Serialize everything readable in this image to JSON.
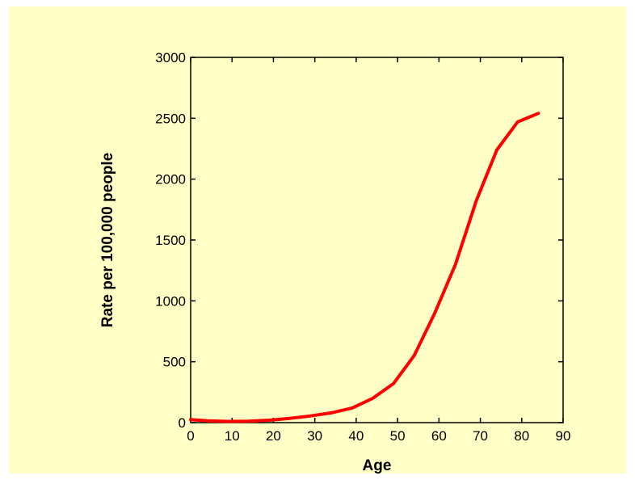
{
  "chart_data": {
    "type": "line",
    "xlabel": "Age",
    "ylabel": "Rate per 100,000 people",
    "xlim": [
      0,
      90
    ],
    "ylim": [
      0,
      3000
    ],
    "xticks": [
      0,
      10,
      20,
      30,
      40,
      50,
      60,
      70,
      80,
      90
    ],
    "yticks": [
      0,
      500,
      1000,
      1500,
      2000,
      2500,
      3000
    ],
    "grid": false,
    "legend": "none",
    "series": [
      {
        "color": "#ff0000",
        "x": [
          0,
          4,
          9,
          14,
          19,
          24,
          29,
          34,
          39,
          44,
          49,
          54,
          59,
          64,
          69,
          74,
          79,
          84
        ],
        "y": [
          25,
          15,
          10,
          12,
          20,
          35,
          55,
          80,
          120,
          200,
          320,
          550,
          900,
          1300,
          1820,
          2240,
          2470,
          2540
        ]
      }
    ]
  },
  "colors": {
    "background": "#ffffc6",
    "plot_background": "#ffffc6",
    "axis": "#000000",
    "line": "#ff0000"
  }
}
